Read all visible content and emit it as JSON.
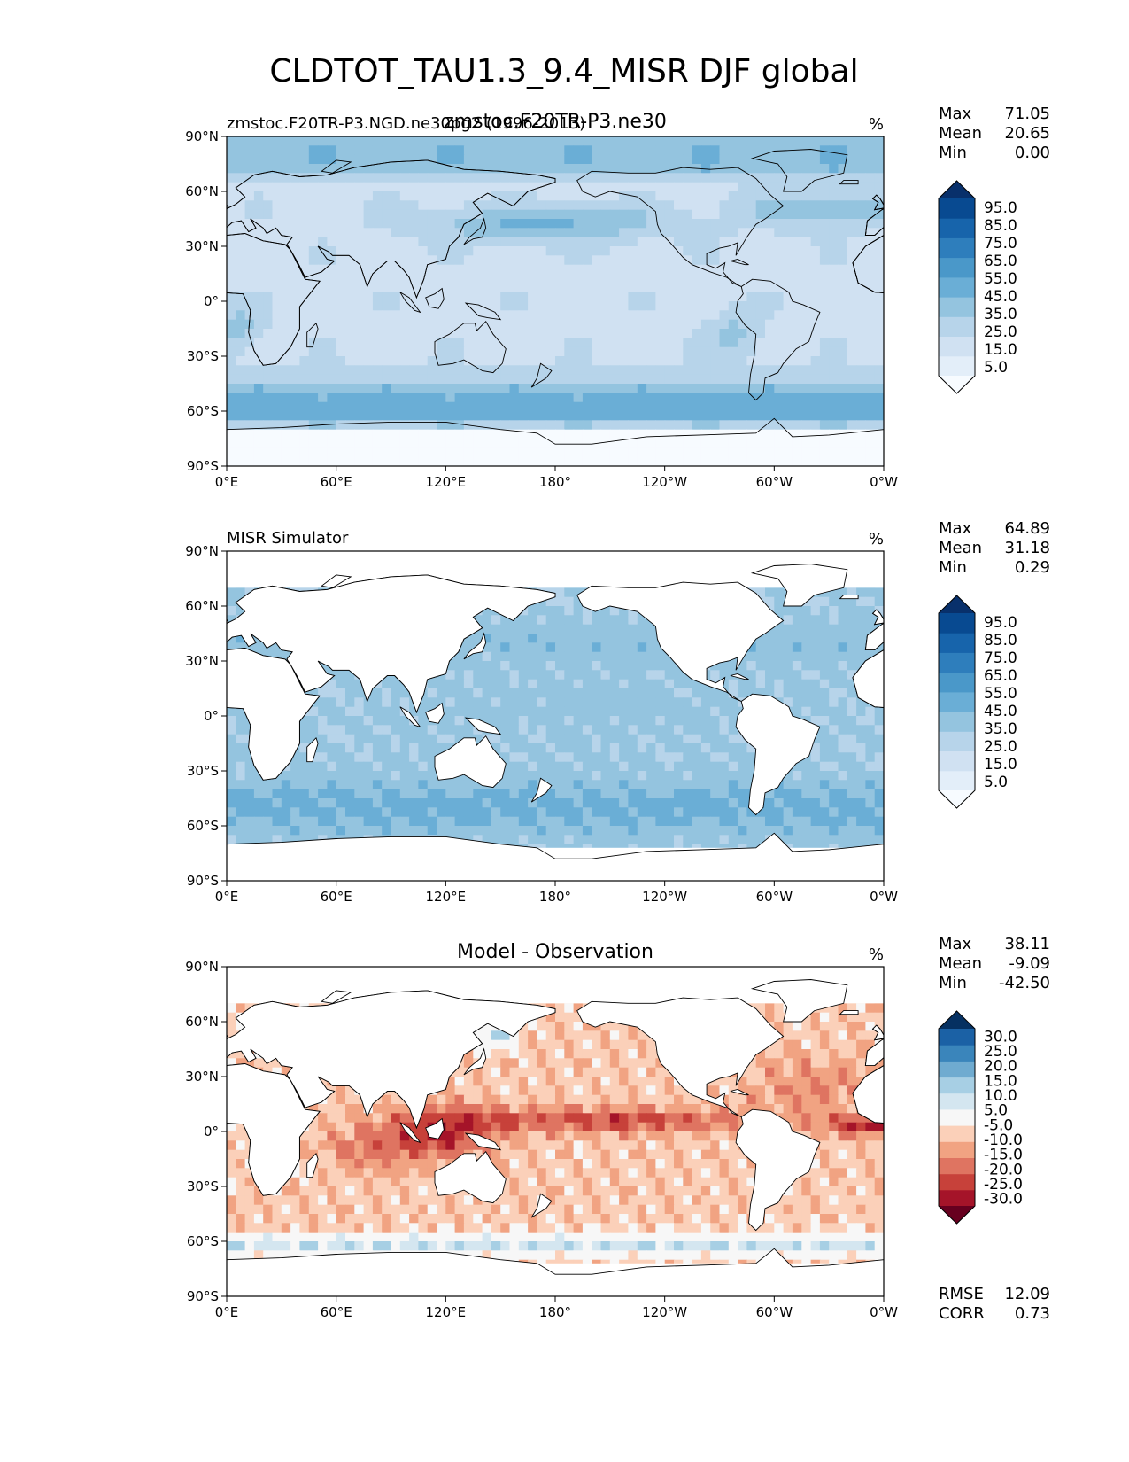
{
  "figure_title": "CLDTOT_TAU1.3_9.4_MISR DJF global",
  "chart_data": [
    {
      "type": "heatmap",
      "panel": "test",
      "title_center": "zmstoc.F20TR-P3.ne30",
      "title_left": "zmstoc.F20TR-P3.NGD.ne30pg2 (1996-2013)",
      "units": "%",
      "stats": [
        {
          "label": "Max",
          "value": "71.05"
        },
        {
          "label": "Mean",
          "value": "20.65"
        },
        {
          "label": "Min",
          "value": "0.00"
        }
      ],
      "colorbar": {
        "levels": [
          "5.0",
          "15.0",
          "25.0",
          "35.0",
          "45.0",
          "55.0",
          "65.0",
          "75.0",
          "85.0",
          "95.0"
        ],
        "colors": [
          "#f7fbff",
          "#e3eef9",
          "#d0e1f2",
          "#b7d4ea",
          "#94c4df",
          "#6aaed6",
          "#4a98c9",
          "#2e7ebc",
          "#1764ab",
          "#084a91",
          "#08306b"
        ]
      },
      "xticks": [
        "0°E",
        "60°E",
        "120°E",
        "180°",
        "120°W",
        "60°W",
        "0°W"
      ],
      "yticks": [
        "90°N",
        "60°N",
        "30°N",
        "0°",
        "30°S",
        "60°S",
        "90°S"
      ],
      "xlim": [
        0,
        360
      ],
      "ylim": [
        -90,
        90
      ],
      "ocean_only": false,
      "regions": [
        {
          "name": "global-background",
          "value": 22
        },
        {
          "name": "arctic",
          "value": 42
        },
        {
          "name": "north-pacific-storm-track",
          "value": 48
        },
        {
          "name": "north-atlantic-storm-track",
          "value": 45
        },
        {
          "name": "southern-ocean-storm-track",
          "value": 50
        },
        {
          "name": "southern-ocean-core",
          "value": 58
        },
        {
          "name": "southeast-pacific-stratocumulus",
          "value": 38
        },
        {
          "name": "southeast-atlantic-stratocumulus",
          "value": 40
        },
        {
          "name": "antarctica",
          "value": 4
        }
      ]
    },
    {
      "type": "heatmap",
      "panel": "reference",
      "title_left": "MISR Simulator",
      "units": "%",
      "stats": [
        {
          "label": "Max",
          "value": "64.89"
        },
        {
          "label": "Mean",
          "value": "31.18"
        },
        {
          "label": "Min",
          "value": "0.29"
        }
      ],
      "colorbar": {
        "levels": [
          "5.0",
          "15.0",
          "25.0",
          "35.0",
          "45.0",
          "55.0",
          "65.0",
          "75.0",
          "85.0",
          "95.0"
        ],
        "colors": [
          "#f7fbff",
          "#e3eef9",
          "#d0e1f2",
          "#b7d4ea",
          "#94c4df",
          "#6aaed6",
          "#4a98c9",
          "#2e7ebc",
          "#1764ab",
          "#084a91",
          "#08306b"
        ]
      },
      "xticks": [
        "0°E",
        "60°E",
        "120°E",
        "180°",
        "120°W",
        "60°W",
        "0°W"
      ],
      "yticks": [
        "90°N",
        "60°N",
        "30°N",
        "0°",
        "30°S",
        "60°S",
        "90°S"
      ],
      "xlim": [
        0,
        360
      ],
      "ylim": [
        -90,
        90
      ],
      "ocean_only": true,
      "regions": [
        {
          "name": "ocean-background",
          "value": 36
        },
        {
          "name": "tropical-pacific",
          "value": 40
        },
        {
          "name": "southern-ocean",
          "value": 48
        },
        {
          "name": "north-pacific",
          "value": 42
        },
        {
          "name": "indian-ocean",
          "value": 38
        }
      ]
    },
    {
      "type": "heatmap",
      "panel": "difference",
      "title_center": "Model - Observation",
      "units": "%",
      "stats": [
        {
          "label": "Max",
          "value": "38.11"
        },
        {
          "label": "Mean",
          "value": "-9.09"
        },
        {
          "label": "Min",
          "value": "-42.50"
        }
      ],
      "bottom_stats": [
        {
          "label": "RMSE",
          "value": "12.09"
        },
        {
          "label": "CORR",
          "value": "0.73"
        }
      ],
      "colorbar": {
        "levels": [
          "-30.0",
          "-25.0",
          "-20.0",
          "-15.0",
          "-10.0",
          "-5.0",
          "5.0",
          "10.0",
          "15.0",
          "20.0",
          "25.0",
          "30.0"
        ],
        "colors": [
          "#67001f",
          "#a51429",
          "#c7413a",
          "#df7461",
          "#f1a382",
          "#fbd0b9",
          "#f7f7f7",
          "#d4e6f0",
          "#a7cfe4",
          "#6fabd0",
          "#3a85bb",
          "#1b61a5",
          "#053061"
        ]
      },
      "xticks": [
        "0°E",
        "60°E",
        "120°E",
        "180°",
        "120°W",
        "60°W",
        "0°W"
      ],
      "yticks": [
        "90°N",
        "60°N",
        "30°N",
        "0°",
        "30°S",
        "60°S",
        "90°S"
      ],
      "xlim": [
        0,
        360
      ],
      "ylim": [
        -90,
        90
      ],
      "ocean_only": true,
      "regions": [
        {
          "name": "ocean-background",
          "value": -8
        },
        {
          "name": "itcz-pacific",
          "value": -22
        },
        {
          "name": "maritime-continent",
          "value": -24
        },
        {
          "name": "indian-ocean",
          "value": -17
        },
        {
          "name": "north-atlantic",
          "value": -15
        },
        {
          "name": "east-atlantic-equator",
          "value": -26
        },
        {
          "name": "southern-ocean-band",
          "value": 8
        },
        {
          "name": "sea-of-okhotsk",
          "value": 12
        }
      ]
    }
  ]
}
